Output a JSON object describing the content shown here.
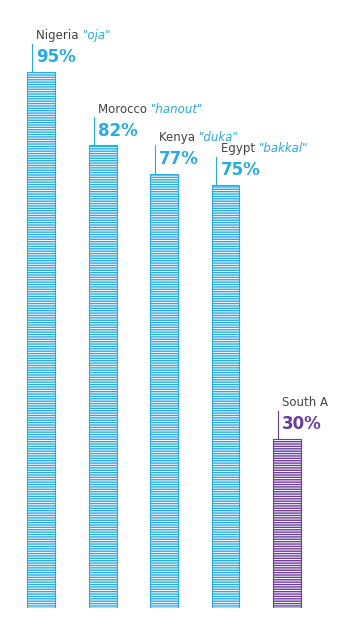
{
  "chart_data": {
    "type": "bar",
    "categories": [
      "Nigeria",
      "Morocco",
      "Kenya",
      "Egypt",
      "South A"
    ],
    "local_names": [
      "\"oja\"",
      "\"hanout\"",
      "\"duka\"",
      "\"bakkal\"",
      null
    ],
    "values": [
      95,
      82,
      77,
      75,
      30
    ],
    "value_labels": [
      "95%",
      "82%",
      "77%",
      "75%",
      "30%"
    ],
    "data_labels": true,
    "colors": [
      "#29abe2",
      "#29abe2",
      "#29abe2",
      "#29abe2",
      "#6a3d9a"
    ],
    "ylim": [
      0,
      100
    ],
    "tick_labels": false
  }
}
